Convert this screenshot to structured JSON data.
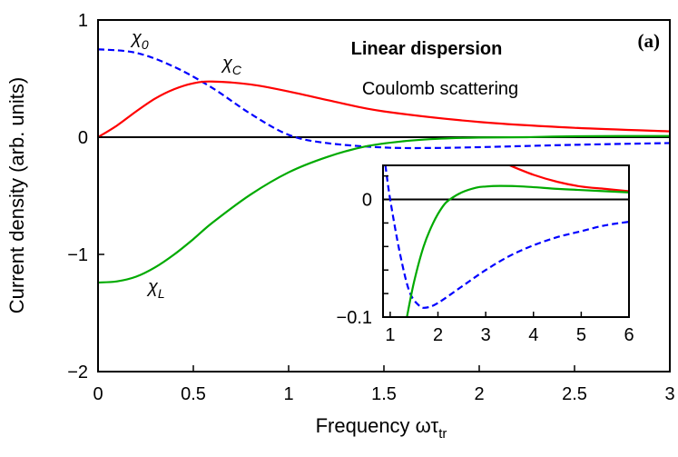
{
  "chart_data": {
    "type": "line",
    "panel_label": "(a)",
    "annotations": [
      "Linear dispersion",
      "Coulomb scattering"
    ],
    "xlabel": "Frequency  ωτ",
    "xlabel_sub": "tr",
    "ylabel": "Current density (arb. units)",
    "xlim": [
      0,
      3
    ],
    "ylim": [
      -2,
      1
    ],
    "xticks": [
      "0",
      "0.5",
      "1",
      "1.5",
      "2",
      "2.5",
      "3"
    ],
    "yticks": [
      "1",
      "0",
      "−1",
      "−2"
    ],
    "grid": false,
    "zero_line": true,
    "series": [
      {
        "name": "χ0",
        "label_main": "χ",
        "label_sub": "0",
        "color": "#0000ff",
        "style": "dashed",
        "x": [
          0,
          0.2,
          0.4,
          0.6,
          0.8,
          1.0,
          1.2,
          1.5,
          1.75,
          2.0,
          2.5,
          3.0
        ],
        "y": [
          0.75,
          0.72,
          0.6,
          0.42,
          0.2,
          0.02,
          -0.05,
          -0.088,
          -0.092,
          -0.085,
          -0.065,
          -0.05
        ]
      },
      {
        "name": "χC",
        "label_main": "χ",
        "label_sub": "C",
        "color": "#ff0000",
        "style": "solid",
        "x": [
          0,
          0.1,
          0.2,
          0.3,
          0.4,
          0.5,
          0.6,
          0.8,
          1.0,
          1.25,
          1.5,
          2.0,
          2.5,
          3.0
        ],
        "y": [
          0,
          0.1,
          0.22,
          0.33,
          0.41,
          0.46,
          0.475,
          0.45,
          0.39,
          0.3,
          0.22,
          0.13,
          0.08,
          0.05
        ]
      },
      {
        "name": "χL",
        "label_main": "χ",
        "label_sub": "L",
        "color": "#00aa00",
        "style": "solid",
        "x": [
          0,
          0.1,
          0.2,
          0.3,
          0.4,
          0.5,
          0.6,
          0.8,
          1.0,
          1.2,
          1.4,
          1.6,
          1.8,
          2.0,
          2.25,
          2.5,
          3.0
        ],
        "y": [
          -1.24,
          -1.23,
          -1.19,
          -1.11,
          -1.0,
          -0.87,
          -0.73,
          -0.49,
          -0.3,
          -0.17,
          -0.08,
          -0.035,
          -0.012,
          -0.003,
          0,
          0.008,
          0.01
        ]
      }
    ],
    "inset": {
      "xlim": [
        0.85,
        6
      ],
      "ylim": [
        -0.1,
        0.029
      ],
      "xticks": [
        "1",
        "2",
        "3",
        "4",
        "5",
        "6"
      ],
      "yticks": [
        "0",
        "−0.1"
      ],
      "series": [
        {
          "name": "χ0",
          "color": "#0000ff",
          "style": "dashed",
          "x": [
            0.9,
            1.0,
            1.2,
            1.4,
            1.6,
            1.75,
            2.0,
            2.5,
            3.0,
            3.5,
            4.0,
            4.5,
            5.0,
            5.5,
            6.0
          ],
          "y": [
            0.029,
            0.0,
            -0.045,
            -0.078,
            -0.09,
            -0.092,
            -0.088,
            -0.074,
            -0.06,
            -0.048,
            -0.039,
            -0.032,
            -0.027,
            -0.022,
            -0.019
          ]
        },
        {
          "name": "χC",
          "color": "#ff0000",
          "style": "solid",
          "x": [
            3.5,
            4.0,
            4.5,
            5.0,
            5.5,
            6.0
          ],
          "y": [
            0.029,
            0.021,
            0.015,
            0.011,
            0.009,
            0.007
          ]
        },
        {
          "name": "χL",
          "color": "#00aa00",
          "style": "solid",
          "x": [
            1.35,
            1.5,
            1.7,
            1.9,
            2.1,
            2.25,
            2.5,
            2.8,
            3.0,
            3.3,
            3.8,
            4.5,
            5.0,
            6.0
          ],
          "y": [
            -0.1,
            -0.07,
            -0.04,
            -0.02,
            -0.006,
            0,
            0.006,
            0.01,
            0.011,
            0.0115,
            0.011,
            0.009,
            0.008,
            0.006
          ]
        }
      ]
    }
  }
}
